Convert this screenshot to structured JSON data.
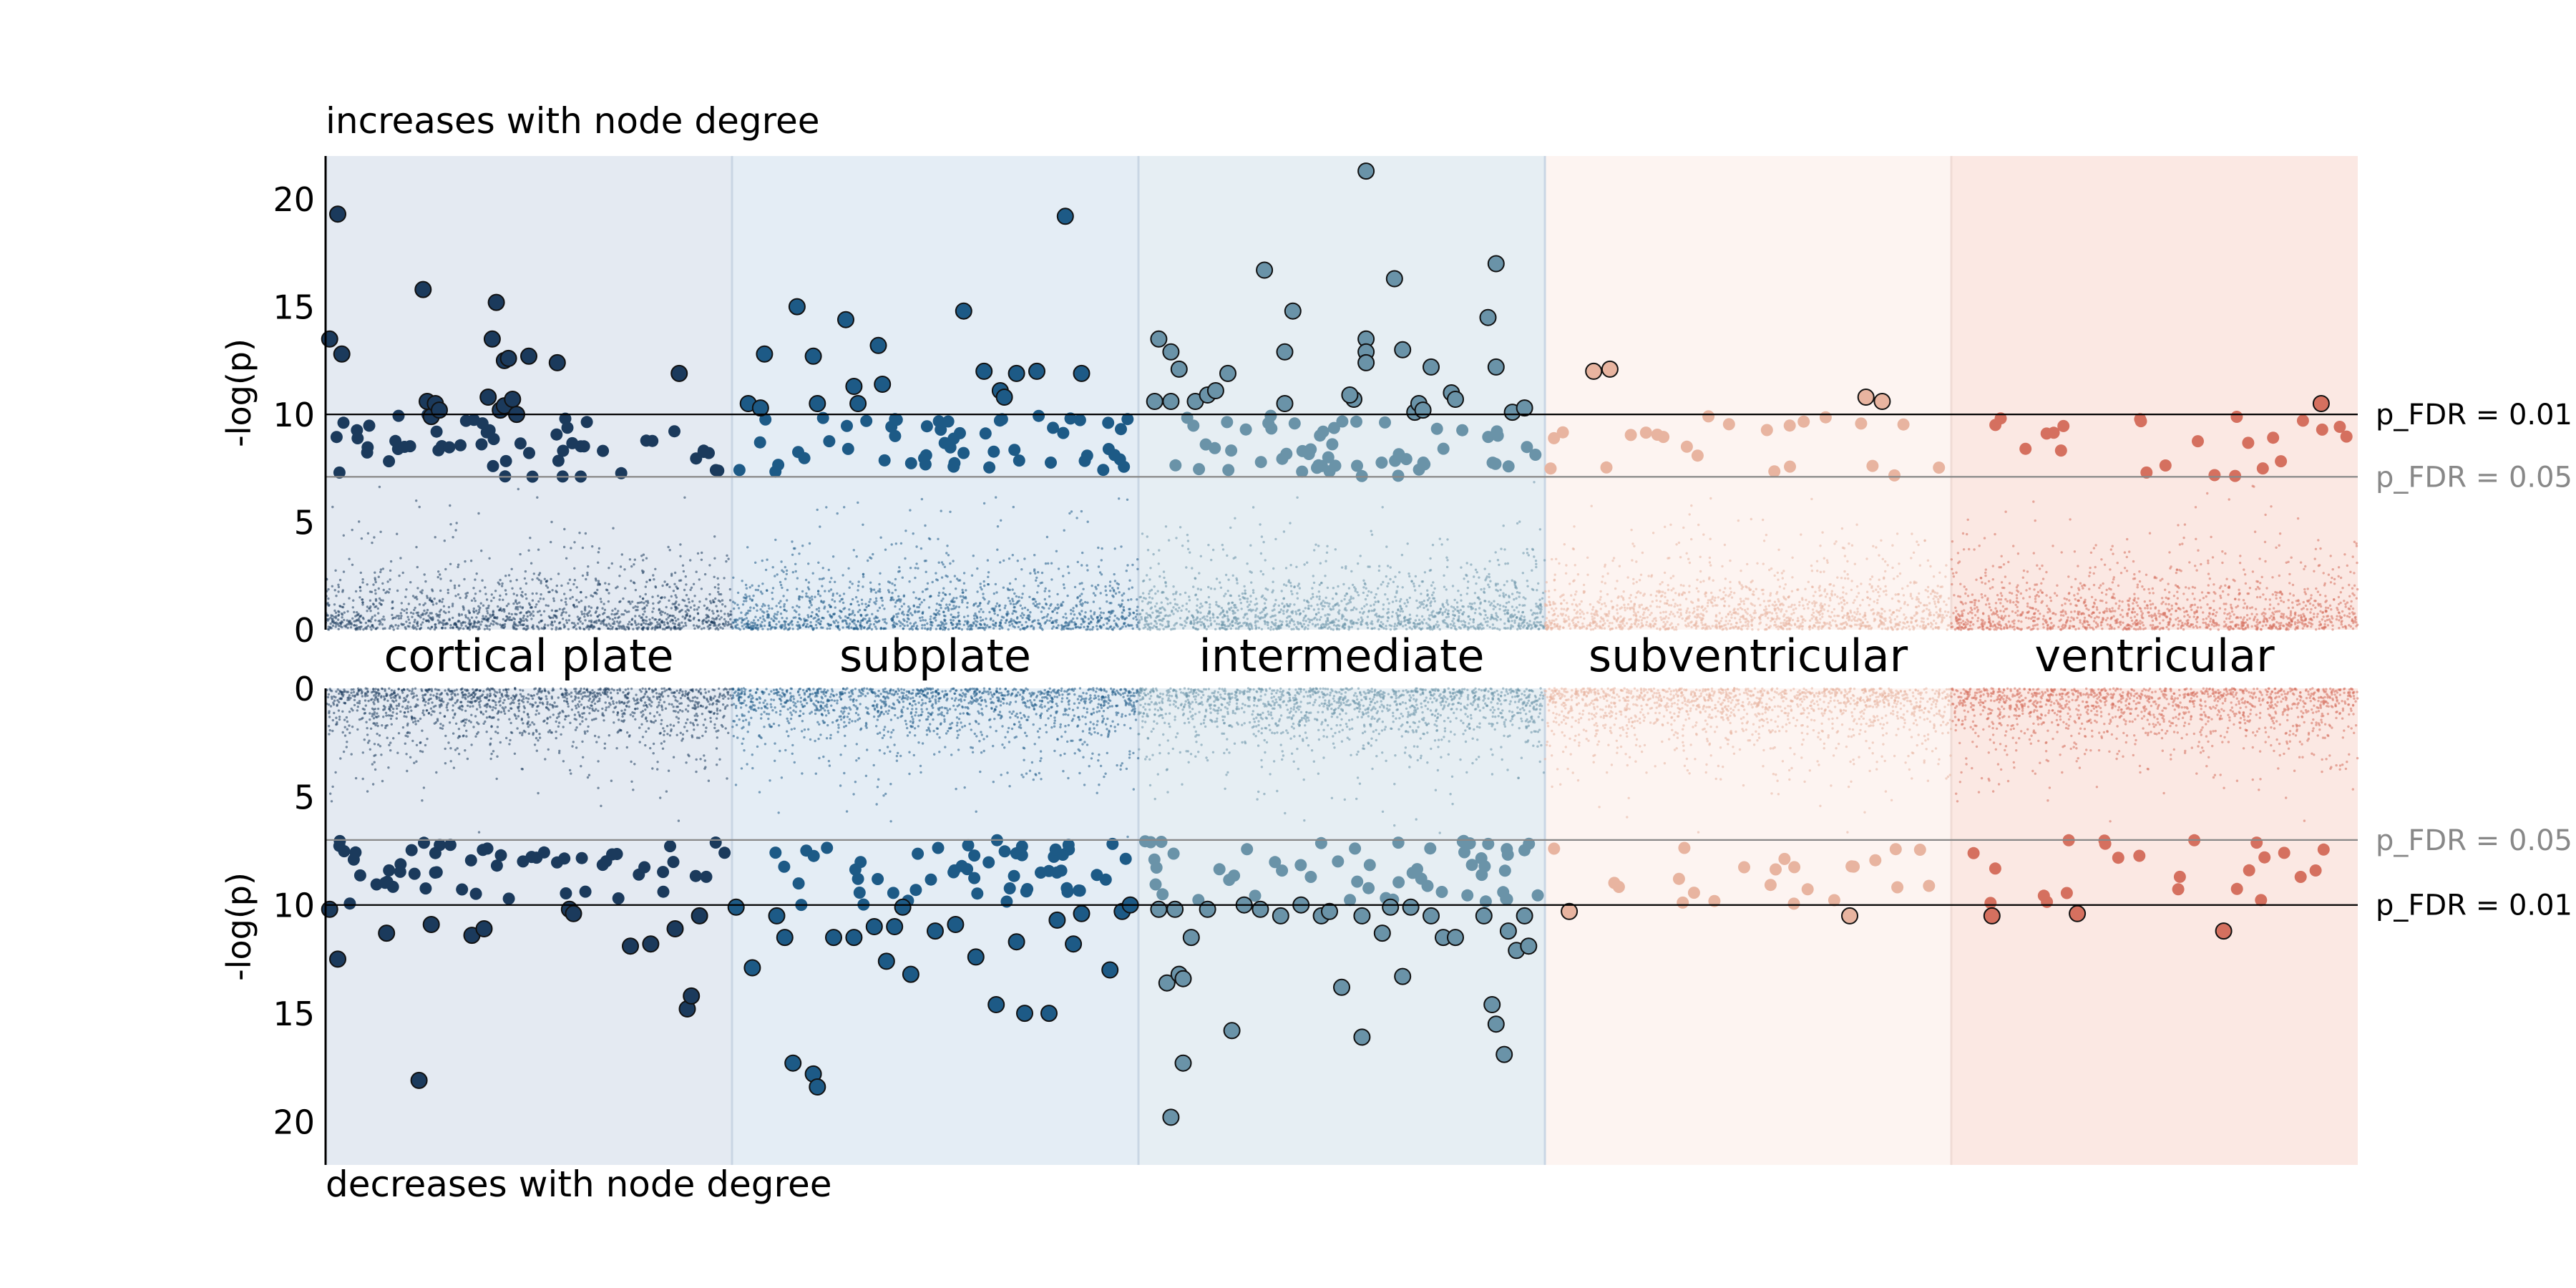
{
  "chart_data": {
    "type": "scatter",
    "subtype": "mirrored manhattan plot",
    "layers": [
      "cortical plate",
      "subplate",
      "intermediate",
      "subventricular",
      "ventricular"
    ],
    "layer_colors": [
      "#1b3a5c",
      "#1d5a86",
      "#6a93a8",
      "#e8b4a0",
      "#d5705f"
    ],
    "layer_shading": [
      "#e4eaf2",
      "#e4edf5",
      "#e6eef3",
      "#fdf4f1",
      "#fbe8e3"
    ],
    "top_panel": {
      "title": "increases with node degree",
      "ylabel": "-log(p)",
      "ylim": [
        0,
        22
      ],
      "yticks": [
        "0",
        "5",
        "10",
        "15",
        "20"
      ],
      "tick_values": [
        0,
        5,
        10,
        15,
        20
      ],
      "thresholds": [
        {
          "y": 10.0,
          "label": "p_FDR = 0.01",
          "color": "#000000"
        },
        {
          "y": 7.1,
          "label": "p_FDR = 0.05",
          "color": "#888888"
        }
      ],
      "significant_points": [
        [
          [
            0.01,
            13.5
          ],
          [
            0.03,
            19.3
          ],
          [
            0.04,
            12.8
          ],
          [
            0.25,
            10.6
          ],
          [
            0.26,
            9.9
          ],
          [
            0.24,
            15.8
          ],
          [
            0.27,
            10.5
          ],
          [
            0.28,
            10.2
          ],
          [
            0.4,
            10.8
          ],
          [
            0.41,
            13.5
          ],
          [
            0.42,
            15.2
          ],
          [
            0.43,
            10.2
          ],
          [
            0.44,
            12.5
          ],
          [
            0.44,
            10.4
          ],
          [
            0.45,
            12.6
          ],
          [
            0.46,
            10.7
          ],
          [
            0.47,
            10.0
          ],
          [
            0.5,
            12.7
          ],
          [
            0.57,
            12.4
          ],
          [
            0.87,
            11.9
          ]
        ],
        [
          [
            0.04,
            10.5
          ],
          [
            0.07,
            10.3
          ],
          [
            0.08,
            12.8
          ],
          [
            0.16,
            15.0
          ],
          [
            0.2,
            12.7
          ],
          [
            0.21,
            10.5
          ],
          [
            0.28,
            14.4
          ],
          [
            0.3,
            11.3
          ],
          [
            0.31,
            10.5
          ],
          [
            0.36,
            13.2
          ],
          [
            0.37,
            11.4
          ],
          [
            0.57,
            14.8
          ],
          [
            0.62,
            12.0
          ],
          [
            0.66,
            11.1
          ],
          [
            0.67,
            10.8
          ],
          [
            0.7,
            11.9
          ],
          [
            0.75,
            12.0
          ],
          [
            0.82,
            19.2
          ],
          [
            0.86,
            11.9
          ]
        ],
        [
          [
            0.04,
            10.6
          ],
          [
            0.05,
            13.5
          ],
          [
            0.08,
            12.9
          ],
          [
            0.1,
            12.1
          ],
          [
            0.08,
            10.6
          ],
          [
            0.14,
            10.6
          ],
          [
            0.17,
            10.9
          ],
          [
            0.19,
            11.1
          ],
          [
            0.22,
            11.9
          ],
          [
            0.31,
            16.7
          ],
          [
            0.36,
            10.5
          ],
          [
            0.36,
            12.9
          ],
          [
            0.38,
            14.8
          ],
          [
            0.53,
            10.7
          ],
          [
            0.52,
            10.9
          ],
          [
            0.56,
            21.3
          ],
          [
            0.56,
            13.5
          ],
          [
            0.56,
            12.9
          ],
          [
            0.56,
            12.4
          ],
          [
            0.63,
            16.3
          ],
          [
            0.65,
            13.0
          ],
          [
            0.68,
            10.1
          ],
          [
            0.69,
            10.5
          ],
          [
            0.7,
            10.2
          ],
          [
            0.72,
            12.2
          ],
          [
            0.77,
            11.0
          ],
          [
            0.78,
            10.7
          ],
          [
            0.86,
            14.5
          ],
          [
            0.88,
            17.0
          ],
          [
            0.88,
            12.2
          ],
          [
            0.92,
            10.1
          ],
          [
            0.95,
            10.3
          ]
        ],
        [
          [
            0.12,
            12.0
          ],
          [
            0.16,
            12.1
          ],
          [
            0.79,
            10.8
          ],
          [
            0.83,
            10.6
          ]
        ],
        [
          [
            0.91,
            10.5
          ]
        ]
      ]
    },
    "bottom_panel": {
      "title": "decreases with node degree",
      "ylabel": "-log(p)",
      "ylim": [
        0,
        22
      ],
      "yticks": [
        "0",
        "5",
        "10",
        "15",
        "20"
      ],
      "tick_values": [
        0,
        5,
        10,
        15,
        20
      ],
      "inverted": true,
      "thresholds": [
        {
          "y": 7.0,
          "label": "p_FDR = 0.05",
          "color": "#888888"
        },
        {
          "y": 10.0,
          "label": "p_FDR = 0.01",
          "color": "#000000"
        }
      ],
      "significant_points": [
        [
          [
            0.01,
            10.2
          ],
          [
            0.03,
            12.5
          ],
          [
            0.15,
            11.3
          ],
          [
            0.23,
            18.1
          ],
          [
            0.26,
            10.9
          ],
          [
            0.36,
            11.4
          ],
          [
            0.39,
            11.1
          ],
          [
            0.6,
            10.2
          ],
          [
            0.61,
            10.4
          ],
          [
            0.75,
            11.9
          ],
          [
            0.8,
            11.8
          ],
          [
            0.86,
            11.1
          ],
          [
            0.89,
            14.8
          ],
          [
            0.9,
            14.2
          ],
          [
            0.92,
            10.5
          ]
        ],
        [
          [
            0.01,
            10.1
          ],
          [
            0.05,
            12.9
          ],
          [
            0.11,
            10.5
          ],
          [
            0.13,
            11.5
          ],
          [
            0.15,
            17.3
          ],
          [
            0.2,
            17.8
          ],
          [
            0.21,
            18.4
          ],
          [
            0.25,
            11.5
          ],
          [
            0.3,
            11.5
          ],
          [
            0.35,
            11.0
          ],
          [
            0.38,
            12.6
          ],
          [
            0.4,
            11.0
          ],
          [
            0.42,
            10.1
          ],
          [
            0.44,
            13.2
          ],
          [
            0.5,
            11.2
          ],
          [
            0.55,
            10.9
          ],
          [
            0.6,
            12.4
          ],
          [
            0.65,
            14.6
          ],
          [
            0.7,
            11.7
          ],
          [
            0.72,
            15.0
          ],
          [
            0.78,
            15.0
          ],
          [
            0.8,
            10.7
          ],
          [
            0.84,
            11.8
          ],
          [
            0.86,
            10.4
          ],
          [
            0.93,
            13.0
          ],
          [
            0.96,
            10.3
          ],
          [
            0.98,
            10.0
          ]
        ],
        [
          [
            0.05,
            10.2
          ],
          [
            0.07,
            13.6
          ],
          [
            0.1,
            13.2
          ],
          [
            0.11,
            13.4
          ],
          [
            0.11,
            17.3
          ],
          [
            0.13,
            11.5
          ],
          [
            0.09,
            10.2
          ],
          [
            0.17,
            10.2
          ],
          [
            0.23,
            15.8
          ],
          [
            0.26,
            10.0
          ],
          [
            0.3,
            10.2
          ],
          [
            0.35,
            10.5
          ],
          [
            0.4,
            10.0
          ],
          [
            0.45,
            10.5
          ],
          [
            0.47,
            10.3
          ],
          [
            0.5,
            13.8
          ],
          [
            0.55,
            10.5
          ],
          [
            0.55,
            16.1
          ],
          [
            0.6,
            11.3
          ],
          [
            0.62,
            10.1
          ],
          [
            0.65,
            13.3
          ],
          [
            0.67,
            10.1
          ],
          [
            0.72,
            10.5
          ],
          [
            0.75,
            11.5
          ],
          [
            0.78,
            11.5
          ],
          [
            0.85,
            10.5
          ],
          [
            0.87,
            14.6
          ],
          [
            0.88,
            15.5
          ],
          [
            0.9,
            16.9
          ],
          [
            0.91,
            11.2
          ],
          [
            0.93,
            12.1
          ],
          [
            0.95,
            10.5
          ],
          [
            0.96,
            11.9
          ],
          [
            0.08,
            19.8
          ]
        ],
        [
          [
            0.06,
            10.3
          ],
          [
            0.75,
            10.5
          ]
        ],
        [
          [
            0.1,
            10.5
          ],
          [
            0.31,
            10.4
          ],
          [
            0.67,
            11.2
          ]
        ]
      ]
    },
    "xlabel": "",
    "grid": false,
    "legend": "none"
  }
}
